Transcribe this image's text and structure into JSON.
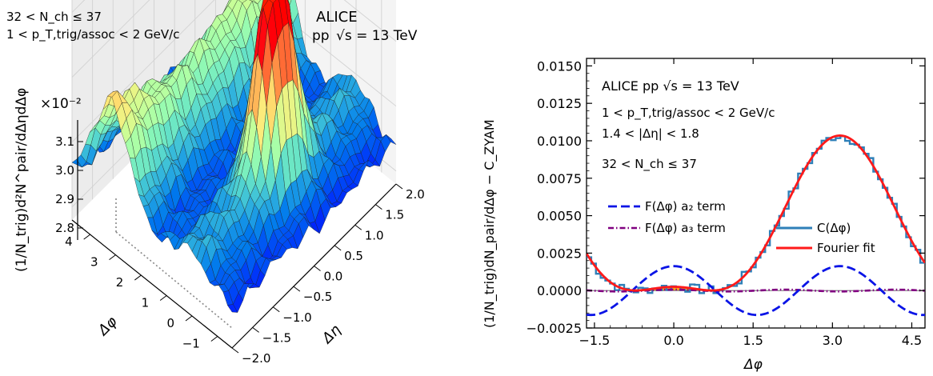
{
  "chart_data": [
    {
      "type": "surface3d",
      "header": {
        "experiment": "ALICE",
        "system": "pp",
        "energy": "√s = 13 TeV",
        "multiplicity": "32 < N_ch ≤ 37",
        "pt_range": "1 < p_T,trig/assoc < 2 GeV/c"
      },
      "zlabel": "(1/N_trig)d²N^pair/dΔηdΔφ",
      "zscale": "×10⁻²",
      "xlabel": "Δφ",
      "ylabel": "Δη",
      "x_ticks": [
        "−1",
        "0",
        "1",
        "2",
        "3",
        "4"
      ],
      "y_ticks": [
        "−2.0",
        "−1.5",
        "−1.0",
        "−0.5",
        "0.0",
        "0.5",
        "1.0",
        "1.5",
        "2.0"
      ],
      "z_ticks": [
        "2.8",
        "2.9",
        "3.0",
        "3.1"
      ],
      "xlim": [
        -1.5708,
        4.7124
      ],
      "ylim": [
        -2.0,
        2.0
      ],
      "zlim": [
        2.78,
        3.15
      ],
      "colormap": "rainbow",
      "grid": true
    },
    {
      "type": "line",
      "legend_annotation": [
        "ALICE pp √s = 13 TeV",
        "1 < p_T,trig/assoc < 2 GeV/c",
        "1.4 < |Δη| < 1.8",
        "32 < N_ch ≤ 37"
      ],
      "xlabel": "Δφ",
      "ylabel": "(1/N_trig)dN_pair/dΔφ − C_ZYAM",
      "xlim": [
        -1.65,
        4.75
      ],
      "ylim": [
        -0.0025,
        0.0155
      ],
      "x_ticks": [
        "−1.5",
        "0.0",
        "1.5",
        "3.0",
        "4.5"
      ],
      "y_ticks": [
        "−0.0025",
        "0.0000",
        "0.0025",
        "0.0050",
        "0.0075",
        "0.0100",
        "0.0125",
        "0.0150"
      ],
      "fourier": {
        "a0": 0.00367,
        "a1": -0.00511,
        "a2": 0.00163,
        "a3": 6e-05
      },
      "series": [
        {
          "name": "C(Δφ)",
          "color": "#2e7fb8",
          "style": "steps"
        },
        {
          "name": "Fourier fit",
          "color": "#ff1a1a",
          "style": "solid"
        },
        {
          "name": "F(Δφ) a₂ term",
          "color": "#0a14e6",
          "style": "dashed"
        },
        {
          "name": "F(Δφ) a₃ term",
          "color": "#800080",
          "style": "dashdot"
        }
      ],
      "fill": {
        "color": "#ffa61a",
        "x_range": [
          -0.8,
          0.8
        ]
      }
    }
  ]
}
